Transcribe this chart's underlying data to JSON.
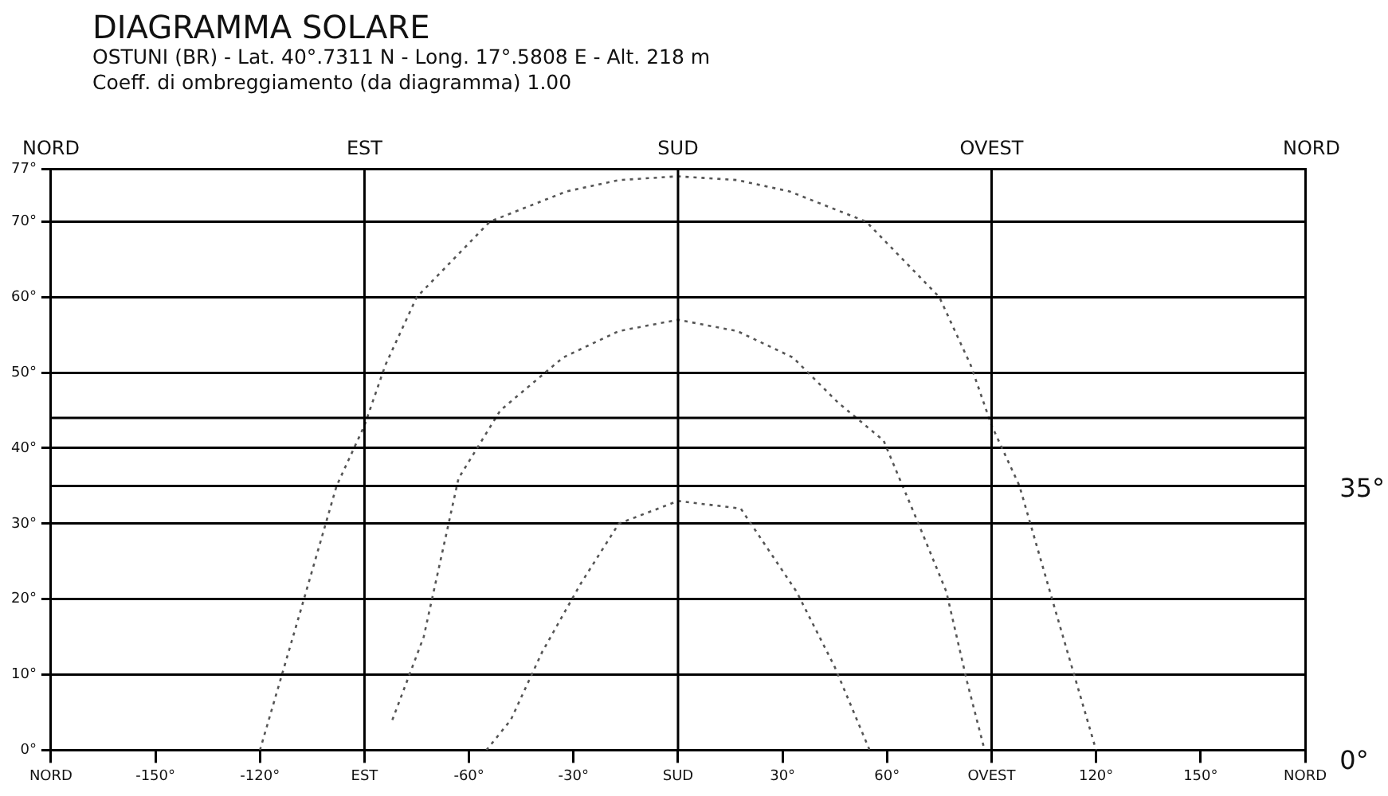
{
  "chart_data": {
    "type": "line",
    "title": "DIAGRAMMA SOLARE",
    "subtitle": "OSTUNI (BR) - Lat. 40°.7311 N - Long. 17°.5808 E - Alt. 218 m",
    "annotations": [
      "Coeff. di ombreggiamento (da diagramma) 1.00",
      "NORD",
      "NORD",
      "35°",
      "0°",
      {
        "text": "EST",
        "x": -90,
        "y": 77
      },
      {
        "text": "SUD",
        "x": 0,
        "y": 77
      },
      {
        "text": "OVEST",
        "x": 90,
        "y": 77
      }
    ],
    "series": [
      {
        "color": "#555555",
        "x": [
          -120,
          -108,
          -98,
          -90,
          -84,
          -75,
          -54,
          -32,
          -17,
          0,
          17,
          32,
          54,
          75,
          84,
          90,
          98,
          108,
          120
        ],
        "values": [
          0,
          19,
          35,
          43,
          51,
          60,
          70,
          74,
          75.5,
          76,
          75.5,
          74,
          70,
          60,
          51,
          43,
          35,
          19,
          0
        ]
      },
      {
        "color": "#555555",
        "x": [
          -82,
          -73,
          -63,
          -51,
          -33,
          -17,
          0,
          17,
          33,
          46,
          59,
          69,
          77,
          83,
          88
        ],
        "values": [
          4,
          15,
          36,
          45,
          52,
          55.5,
          57,
          55.5,
          52,
          46,
          41,
          30,
          21,
          9,
          0
        ]
      },
      {
        "color": "#555555",
        "x": [
          -55,
          -48,
          -39,
          -28,
          -17,
          0,
          18,
          34,
          45,
          55
        ],
        "values": [
          0,
          4,
          13,
          22,
          30,
          33,
          32,
          21,
          11,
          0
        ]
      }
    ],
    "xlim": [
      -180,
      180
    ],
    "xticks": [
      {
        "value": -180,
        "label": "NORD"
      },
      {
        "value": -150,
        "label": "-150°"
      },
      {
        "value": -120,
        "label": "-120°"
      },
      {
        "value": -90,
        "label": "EST"
      },
      {
        "value": -60,
        "label": "-60°"
      },
      {
        "value": -30,
        "label": "-30°"
      },
      {
        "value": 0,
        "label": "SUD"
      },
      {
        "value": 30,
        "label": "30°"
      },
      {
        "value": 60,
        "label": "60°"
      },
      {
        "value": 90,
        "label": "OVEST"
      },
      {
        "value": 120,
        "label": "120°"
      },
      {
        "value": 150,
        "label": "150°"
      },
      {
        "value": 180,
        "label": "NORD"
      }
    ],
    "ylim": [
      0,
      77
    ],
    "yticks": [
      {
        "value": 0,
        "label": "0°"
      },
      {
        "value": 10,
        "label": "10°"
      },
      {
        "value": 20,
        "label": "20°"
      },
      {
        "value": 30,
        "label": "30°"
      },
      {
        "value": 40,
        "label": "40°"
      },
      {
        "value": 50,
        "label": "50°"
      },
      {
        "value": 60,
        "label": "60°"
      },
      {
        "value": 70,
        "label": "70°"
      },
      {
        "value": 77,
        "label": "77°"
      }
    ],
    "ref_lines": [
      {
        "axis": "y",
        "value": 35,
        "color": "#000000"
      },
      {
        "axis": "y",
        "value": 44,
        "color": "#000000"
      },
      {
        "axis": "x",
        "value": -90,
        "color": "#000000"
      },
      {
        "axis": "x",
        "value": 0,
        "color": "#000000"
      },
      {
        "axis": "x",
        "value": 90,
        "color": "#000000"
      }
    ],
    "grid": "y",
    "legend": false,
    "marker": "none",
    "line_style": "dotted"
  }
}
